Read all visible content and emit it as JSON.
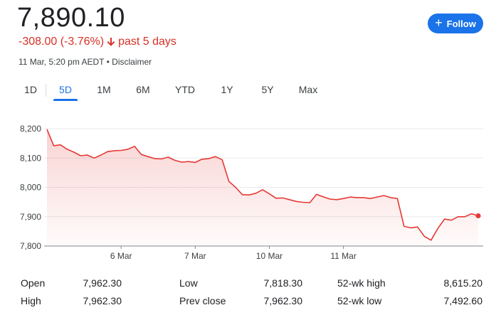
{
  "header": {
    "price": "7,890.10",
    "change": "-308.00 (-3.76%)",
    "period": "past 5 days",
    "timestamp": "11 Mar, 5:20 pm AEDT",
    "disclaimer": "Disclaimer",
    "separator": "•"
  },
  "follow_button": {
    "label": "Follow",
    "icon": "plus-icon"
  },
  "tabs": [
    {
      "label": "1D",
      "active": false
    },
    {
      "label": "5D",
      "active": true
    },
    {
      "label": "1M",
      "active": false
    },
    {
      "label": "6M",
      "active": false
    },
    {
      "label": "YTD",
      "active": false
    },
    {
      "label": "1Y",
      "active": false
    },
    {
      "label": "5Y",
      "active": false
    },
    {
      "label": "Max",
      "active": false
    }
  ],
  "colors": {
    "accent": "#1a73e8",
    "negative": "#d93025",
    "line": "#e53935",
    "grid": "#e8eaed"
  },
  "chart_data": {
    "type": "area",
    "ylim": [
      7800,
      8200
    ],
    "yticks": [
      "8,200",
      "8,100",
      "8,000",
      "7,900",
      "7,800"
    ],
    "ytick_values": [
      8200,
      8100,
      8000,
      7900,
      7800
    ],
    "xticks": [
      "6 Mar",
      "7 Mar",
      "10 Mar",
      "11 Mar"
    ],
    "xtick_index": [
      11,
      22,
      33,
      44
    ],
    "grid": true,
    "values": [
      8198,
      8142,
      8145,
      8130,
      8120,
      8108,
      8110,
      8100,
      8110,
      8122,
      8125,
      8126,
      8130,
      8140,
      8112,
      8105,
      8098,
      8097,
      8103,
      8092,
      8086,
      8088,
      8085,
      8096,
      8098,
      8105,
      8094,
      8020,
      8000,
      7975,
      7974,
      7980,
      7992,
      7978,
      7963,
      7964,
      7958,
      7952,
      7949,
      7948,
      7976,
      7968,
      7960,
      7958,
      7962,
      7967,
      7965,
      7965,
      7962,
      7967,
      7972,
      7965,
      7962,
      7867,
      7862,
      7865,
      7833,
      7820,
      7860,
      7892,
      7888,
      7900,
      7900,
      7910,
      7903
    ]
  },
  "stats": [
    {
      "label": "Open",
      "value": "7,962.30"
    },
    {
      "label": "High",
      "value": "7,962.30"
    },
    {
      "label": "Low",
      "value": "7,818.30"
    },
    {
      "label": "Prev close",
      "value": "7,962.30"
    },
    {
      "label": "52-wk high",
      "value": "8,615.20"
    },
    {
      "label": "52-wk low",
      "value": "7,492.60"
    }
  ]
}
